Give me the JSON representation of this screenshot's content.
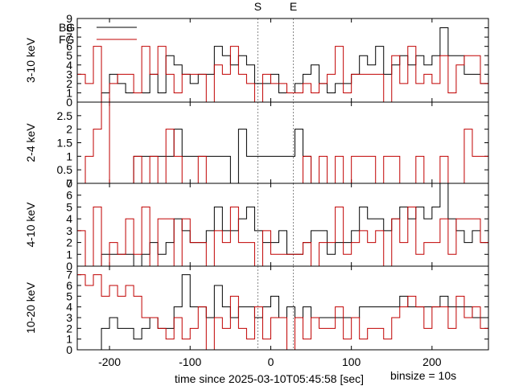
{
  "chart_data": {
    "type": "line",
    "x_range": [
      -240,
      270
    ],
    "binsize_label": "binsize = 10s",
    "xlabel": "time since 2025-03-10T05:45:58 [sec]",
    "x_ticks": [
      -200,
      -100,
      0,
      100,
      200
    ],
    "markers": [
      {
        "label": "S",
        "x": -16
      },
      {
        "label": "E",
        "x": 28
      }
    ],
    "legend": [
      {
        "name": "BG",
        "color": "#000000"
      },
      {
        "name": "FG",
        "color": "#c00000"
      }
    ],
    "series_colors": {
      "bg": "#000000",
      "fg": "#c00000"
    },
    "panels": [
      {
        "ylabel": "3-10 keV",
        "ylim": [
          0,
          9
        ],
        "y_ticks": [
          0,
          1,
          2,
          3,
          4,
          5,
          6,
          7,
          8,
          9
        ],
        "bg": {
          "x0": -220,
          "values": [
            0,
            1,
            3,
            2,
            1,
            1,
            1,
            3,
            1,
            5,
            4,
            3,
            2,
            3,
            3,
            6,
            5,
            4,
            5,
            4,
            2,
            2,
            3,
            1,
            1,
            2,
            3,
            4,
            2,
            1,
            2,
            2,
            3,
            5,
            4,
            6,
            3,
            4,
            5,
            4,
            5,
            4,
            5,
            8,
            5,
            5,
            3,
            3,
            2,
            4,
            3,
            2,
            1,
            1,
            1,
            1,
            1,
            1,
            2,
            1,
            1,
            1,
            1,
            1,
            2,
            1,
            1
          ]
        },
        "fg": {
          "x0": -240,
          "values": [
            3,
            2,
            6,
            0,
            2,
            3,
            3,
            1,
            6,
            3,
            6,
            3,
            1,
            3,
            3,
            3,
            0,
            4,
            3,
            6,
            3,
            2,
            0,
            3,
            2,
            2,
            1,
            1,
            2,
            1,
            2,
            3,
            6,
            1,
            3,
            3,
            3,
            3,
            0,
            5,
            2,
            6,
            2,
            3,
            2,
            5,
            1,
            4,
            5,
            5,
            2,
            3,
            1,
            0,
            2,
            1,
            2,
            2,
            1,
            2,
            1,
            1,
            1,
            3,
            3,
            1,
            2,
            1,
            2
          ]
        }
      },
      {
        "ylabel": "2-4 keV",
        "ylim": [
          0,
          3
        ],
        "y_ticks": [
          0,
          0.5,
          1,
          1.5,
          2,
          2.5
        ],
        "bg": {
          "x0": -220,
          "values": [
            0,
            0,
            0,
            0,
            0,
            1,
            1,
            1,
            1,
            1,
            2,
            1,
            1,
            1,
            1,
            1,
            1,
            0,
            2,
            1,
            1,
            1,
            1,
            1,
            1,
            2,
            1,
            0,
            0,
            0,
            0,
            0,
            0,
            0,
            0,
            0,
            0,
            0,
            0,
            0,
            0,
            0,
            0,
            0,
            0,
            0,
            0,
            0,
            0,
            0,
            0,
            0,
            0,
            0,
            0,
            0,
            0,
            0,
            0,
            0,
            0,
            0,
            0,
            0,
            0,
            0,
            0
          ]
        },
        "fg": {
          "x0": -240,
          "values": [
            0,
            1,
            2,
            3,
            0,
            0,
            0,
            1,
            0,
            1,
            0,
            2,
            1,
            0,
            0,
            1,
            0,
            0,
            0,
            0,
            0,
            0,
            0,
            0,
            0,
            0,
            0,
            0,
            1,
            0,
            1,
            0,
            1,
            0,
            1,
            1,
            1,
            0,
            1,
            1,
            0,
            0,
            1,
            0,
            0,
            1,
            0,
            0,
            2,
            1,
            1,
            0,
            0,
            0,
            0,
            0,
            0,
            1,
            0,
            0,
            0,
            0,
            0,
            0,
            1,
            0,
            1,
            0,
            1
          ]
        }
      },
      {
        "ylabel": "4-10 keV",
        "ylim": [
          0,
          7
        ],
        "y_ticks": [
          0,
          1,
          2,
          3,
          4,
          5,
          6,
          7
        ],
        "bg": {
          "x0": -220,
          "values": [
            0,
            1,
            1,
            1,
            1,
            0,
            1,
            2,
            1,
            2,
            4,
            3,
            2,
            2,
            3,
            5,
            3,
            3,
            4,
            5,
            3,
            2,
            2,
            3,
            1,
            1,
            2,
            3,
            3,
            1,
            2,
            2,
            3,
            5,
            4,
            4,
            3,
            4,
            5,
            4,
            5,
            4,
            5,
            7,
            4,
            3,
            2,
            3,
            2,
            2,
            3,
            2,
            0,
            0,
            0,
            1,
            1,
            0,
            0,
            1,
            0,
            0,
            0,
            0,
            1,
            1,
            1
          ]
        },
        "fg": {
          "x0": -240,
          "values": [
            3,
            0,
            5,
            0,
            2,
            1,
            4,
            1,
            5,
            0,
            4,
            4,
            0,
            4,
            2,
            2,
            0,
            3,
            2,
            5,
            2,
            2,
            0,
            3,
            1,
            1,
            1,
            1,
            2,
            0,
            2,
            2,
            5,
            1,
            2,
            3,
            2,
            3,
            0,
            4,
            2,
            5,
            1,
            2,
            2,
            4,
            1,
            4,
            4,
            4,
            2,
            2,
            1,
            0,
            2,
            1,
            2,
            2,
            1,
            2,
            1,
            1,
            1,
            2,
            2,
            1,
            2,
            1,
            1
          ]
        }
      },
      {
        "ylabel": "10-20 keV",
        "ylim": [
          0,
          7.8
        ],
        "y_ticks": [
          0,
          1,
          2,
          3,
          4,
          5,
          6,
          7
        ],
        "bg": {
          "x0": -220,
          "values": [
            0,
            2,
            3,
            2,
            2,
            1,
            2,
            3,
            2,
            2,
            4,
            7,
            4,
            4,
            3,
            6,
            4,
            3,
            4,
            4,
            3,
            4,
            5,
            3,
            4,
            3,
            4,
            3,
            3,
            3,
            3,
            3,
            3,
            4,
            4,
            4,
            4,
            4,
            5,
            4,
            4,
            4,
            4,
            5,
            4,
            4,
            4,
            3,
            3,
            2,
            2,
            2,
            1,
            1,
            1,
            1,
            0,
            1,
            0,
            1,
            0,
            1,
            1,
            1,
            0,
            0,
            0
          ]
        },
        "fg": {
          "x0": -240,
          "values": [
            7,
            6,
            7,
            5,
            6,
            5,
            6,
            5,
            3,
            3,
            2,
            1,
            3,
            1,
            2,
            4,
            0,
            3,
            2,
            5,
            2,
            1,
            4,
            1,
            3,
            3,
            0,
            3,
            1,
            3,
            2,
            2,
            4,
            1,
            3,
            1,
            2,
            2,
            1,
            3,
            4,
            5,
            4,
            2,
            4,
            4,
            2,
            5,
            3,
            4,
            2,
            4,
            5,
            5,
            3,
            2,
            3,
            4,
            5,
            3,
            1,
            1,
            0,
            1,
            1,
            2,
            2,
            1,
            1
          ]
        }
      }
    ]
  }
}
